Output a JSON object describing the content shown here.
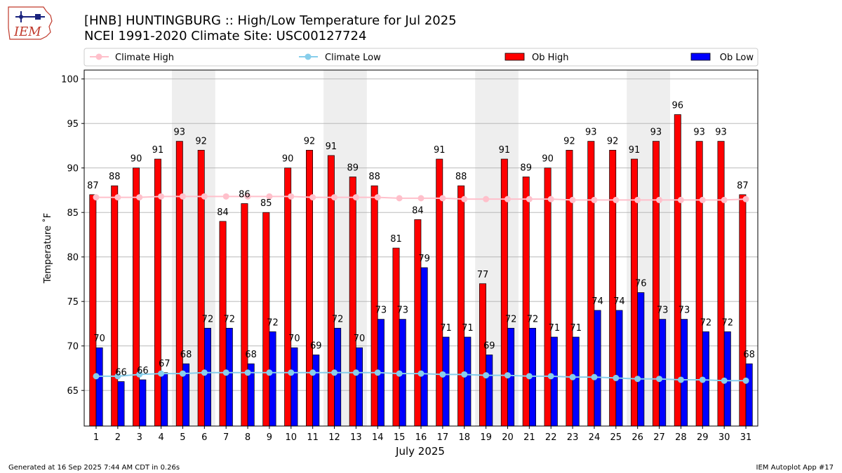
{
  "header": {
    "title_line1": "[HNB] HUNTINGBURG :: High/Low Temperature for Jul 2025",
    "title_line2": "NCEI 1991-2020 Climate Site: USC00127724",
    "logo_text": "IEM"
  },
  "footer": {
    "generated": "Generated at 16 Sep 2025 7:44 AM CDT in 0.26s",
    "app": "IEM Autoplot App #17"
  },
  "colors": {
    "ob_high": "#ff0000",
    "ob_low": "#0000ff",
    "climate_high": "#ffc0cb",
    "climate_low": "#87ceeb",
    "weekend_shade": "#eeeeee",
    "grid": "#b0b0b0"
  },
  "chart_data": {
    "type": "bar",
    "xlabel": "July 2025",
    "ylabel": "Temperature ˚F",
    "ylim": [
      61,
      101
    ],
    "yticks": [
      65,
      70,
      75,
      80,
      85,
      90,
      95,
      100
    ],
    "grid": "horizontal",
    "legend_position": "top",
    "categories": [
      "1",
      "2",
      "3",
      "4",
      "5",
      "6",
      "7",
      "8",
      "9",
      "10",
      "11",
      "12",
      "13",
      "14",
      "15",
      "16",
      "17",
      "18",
      "19",
      "20",
      "21",
      "22",
      "23",
      "24",
      "25",
      "26",
      "27",
      "28",
      "29",
      "30",
      "31"
    ],
    "shaded_days": [
      [
        "5",
        "6"
      ],
      [
        "12",
        "13"
      ],
      [
        "19",
        "20"
      ],
      [
        "26",
        "27"
      ]
    ],
    "series": [
      {
        "name": "Climate High",
        "kind": "line",
        "values": [
          86.7,
          86.7,
          86.7,
          86.8,
          86.8,
          86.8,
          86.8,
          86.8,
          86.8,
          86.8,
          86.7,
          86.7,
          86.7,
          86.7,
          86.6,
          86.6,
          86.6,
          86.5,
          86.5,
          86.5,
          86.5,
          86.5,
          86.4,
          86.4,
          86.4,
          86.4,
          86.4,
          86.4,
          86.4,
          86.4,
          86.5
        ]
      },
      {
        "name": "Climate Low",
        "kind": "line",
        "values": [
          66.6,
          66.6,
          66.8,
          66.9,
          66.9,
          67.0,
          67.0,
          67.0,
          67.0,
          67.0,
          67.0,
          67.0,
          67.0,
          67.0,
          66.9,
          66.9,
          66.8,
          66.8,
          66.7,
          66.7,
          66.6,
          66.6,
          66.5,
          66.5,
          66.4,
          66.3,
          66.3,
          66.2,
          66.2,
          66.1,
          66.1
        ]
      },
      {
        "name": "Ob High",
        "kind": "bar",
        "values": [
          87,
          88,
          90,
          91,
          93,
          92,
          84,
          86,
          85,
          90,
          92,
          91.4,
          89,
          88,
          81,
          84.2,
          91,
          88,
          77,
          91,
          89,
          90,
          92,
          93,
          92,
          91,
          93,
          96,
          93,
          93,
          87
        ],
        "labels": [
          "87",
          "88",
          "90",
          "91",
          "93",
          "92",
          "84",
          "86",
          "85",
          "90",
          "92",
          "91",
          "89",
          "88",
          "81",
          "84",
          "91",
          "88",
          "77",
          "91",
          "89",
          "90",
          "92",
          "93",
          "92",
          "91",
          "93",
          "96",
          "93",
          "93",
          "87"
        ]
      },
      {
        "name": "Ob Low",
        "kind": "bar",
        "values": [
          69.8,
          66,
          66.2,
          67,
          68,
          72,
          72,
          68,
          71.6,
          69.8,
          69,
          72,
          69.8,
          73,
          73,
          78.8,
          71,
          71,
          69,
          72,
          72,
          71,
          71,
          74,
          74,
          76,
          73,
          73,
          71.6,
          71.6,
          68
        ],
        "labels": [
          "70",
          "66",
          "66",
          "67",
          "68",
          "72",
          "72",
          "68",
          "72",
          "70",
          "69",
          "72",
          "70",
          "73",
          "73",
          "79",
          "71",
          "71",
          "69",
          "72",
          "72",
          "71",
          "71",
          "74",
          "74",
          "76",
          "73",
          "73",
          "72",
          "72",
          "68"
        ]
      }
    ]
  }
}
